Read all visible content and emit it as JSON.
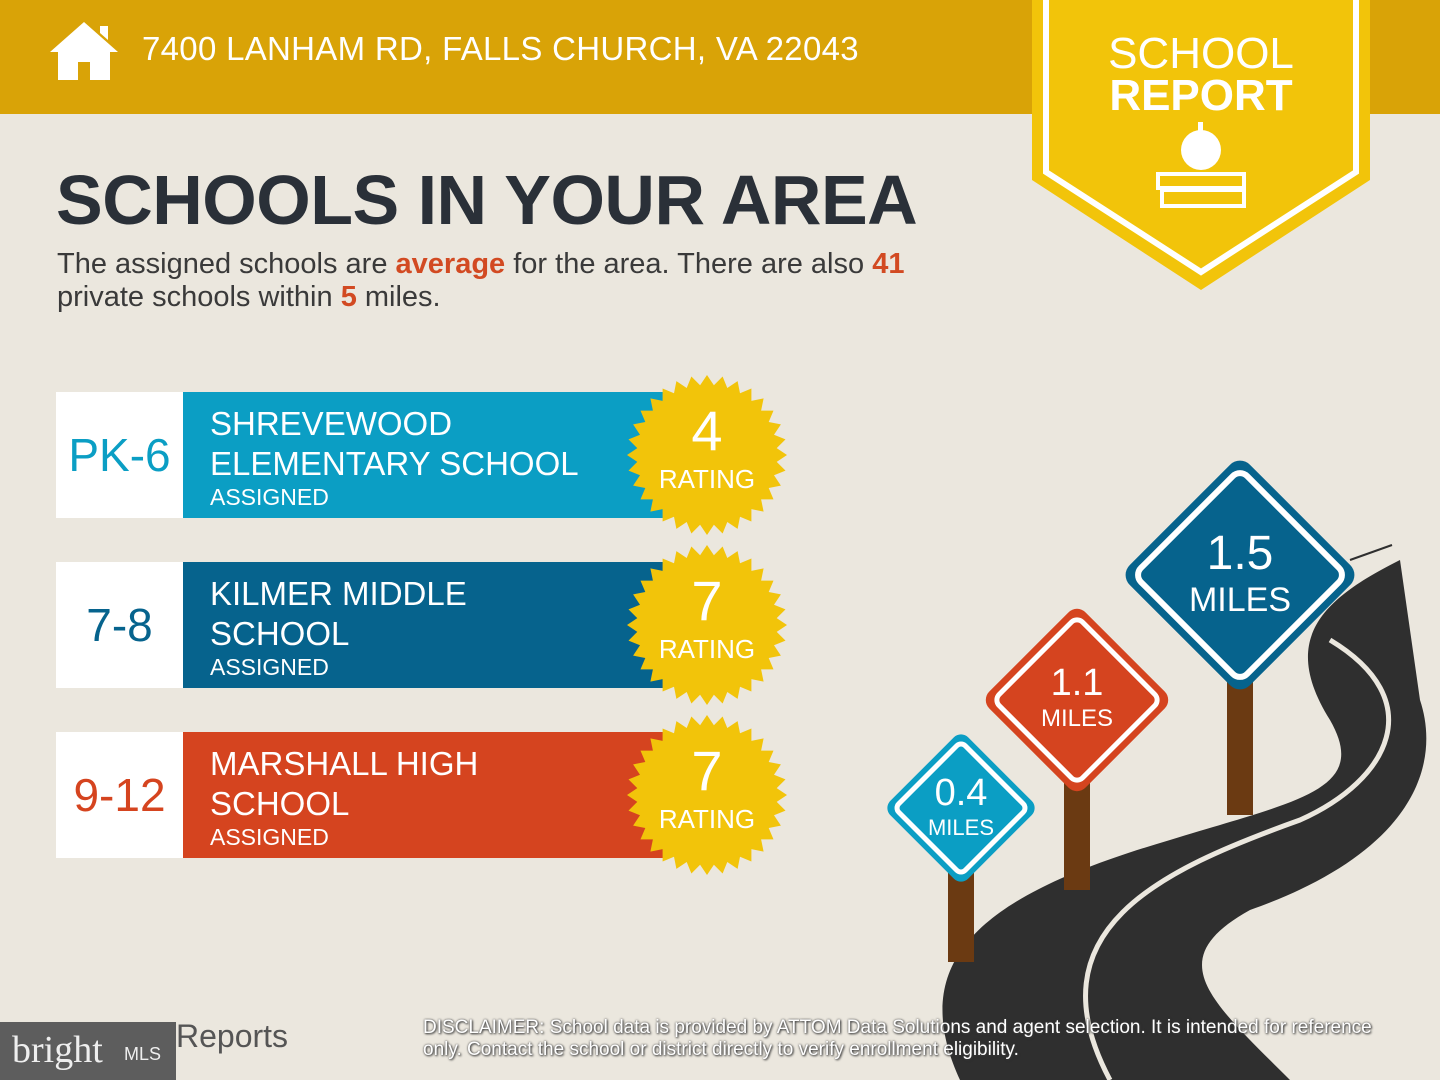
{
  "header": {
    "address": "7400 LANHAM RD, FALLS CHURCH, VA 22043",
    "icon": "home-icon"
  },
  "badge": {
    "line1": "SCHOOL",
    "line2": "REPORT",
    "icon": "apple-books-icon",
    "color": "#f2c40a"
  },
  "title": "SCHOOLS IN YOUR AREA",
  "summary": {
    "p1": "The assigned schools are ",
    "rating_word": "average",
    "p2": " for the area. There are also ",
    "private_count": "41",
    "p3": " private schools within ",
    "radius": "5",
    "p4": " miles."
  },
  "schools": [
    {
      "grades": "PK-6",
      "name1": "SHREVEWOOD",
      "name2": "ELEMENTARY SCHOOL",
      "status": "ASSIGNED",
      "rating": "4",
      "rating_label": "RATING",
      "color": "#0b9ec4"
    },
    {
      "grades": "7-8",
      "name1": "KILMER MIDDLE",
      "name2": "SCHOOL",
      "status": "ASSIGNED",
      "rating": "7",
      "rating_label": "RATING",
      "color": "#06638d"
    },
    {
      "grades": "9-12",
      "name1": "MARSHALL HIGH",
      "name2": "SCHOOL",
      "status": "ASSIGNED",
      "rating": "7",
      "rating_label": "RATING",
      "color": "#d5441f"
    }
  ],
  "distances": [
    {
      "value": "0.4",
      "unit": "MILES",
      "color": "#0b9ec4"
    },
    {
      "value": "1.1",
      "unit": "MILES",
      "color": "#d5441f"
    },
    {
      "value": "1.5",
      "unit": "MILES",
      "color": "#06638d"
    }
  ],
  "footer": {
    "logo_text": "bright",
    "logo_suffix": "MLS",
    "reports_text": "Reports",
    "disclaimer_label": "DISCLAIMER:",
    "disclaimer": " School data is provided by ATTOM Data Solutions and agent selection. It is intended for reference only. Contact the school or district directly to verify enrollment eligibility."
  }
}
